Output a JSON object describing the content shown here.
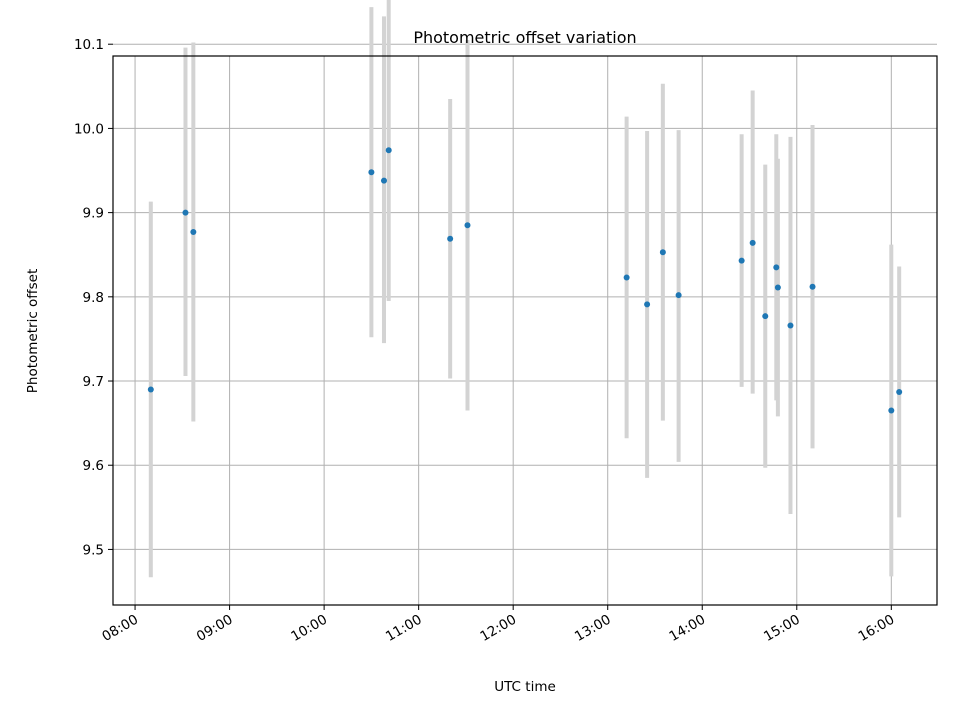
{
  "chart_data": {
    "type": "scatter",
    "title": "Photometric offset variation",
    "xlabel": "UTC time",
    "ylabel": "Photometric offset",
    "x_tick_labels": [
      "08:00",
      "09:00",
      "10:00",
      "11:00",
      "12:00",
      "13:00",
      "14:00",
      "15:00",
      "16:00"
    ],
    "x_ticks": [
      "08:00",
      "09:00",
      "10:00",
      "11:00",
      "12:00",
      "13:00",
      "14:00",
      "15:00",
      "16:00"
    ],
    "y_ticks": [
      9.5,
      9.6,
      9.7,
      9.8,
      9.9,
      10.0,
      10.1
    ],
    "y_tick_labels": [
      "9.5",
      "9.6",
      "9.7",
      "9.8",
      "9.9",
      "10.0",
      "10.1"
    ],
    "xlim": [
      "07:46",
      "16:29"
    ],
    "ylim": [
      9.434,
      10.086
    ],
    "grid": true,
    "marker_color": "#1f77b4",
    "errorbar_color": "#d3d3d3",
    "points": [
      {
        "time": "08:10",
        "y": 9.69,
        "ymin": 9.467,
        "ymax": 9.913
      },
      {
        "time": "08:32",
        "y": 9.9,
        "ymin": 9.706,
        "ymax": 10.096
      },
      {
        "time": "08:37",
        "y": 9.877,
        "ymin": 9.652,
        "ymax": 10.102
      },
      {
        "time": "10:30",
        "y": 9.948,
        "ymin": 9.752,
        "ymax": 10.144
      },
      {
        "time": "10:38",
        "y": 9.938,
        "ymin": 9.745,
        "ymax": 10.133
      },
      {
        "time": "10:41",
        "y": 9.974,
        "ymin": 9.795,
        "ymax": 10.153
      },
      {
        "time": "11:20",
        "y": 9.869,
        "ymin": 9.703,
        "ymax": 10.035
      },
      {
        "time": "11:31",
        "y": 9.885,
        "ymin": 9.665,
        "ymax": 10.105
      },
      {
        "time": "13:12",
        "y": 9.823,
        "ymin": 9.632,
        "ymax": 10.014
      },
      {
        "time": "13:25",
        "y": 9.791,
        "ymin": 9.585,
        "ymax": 9.997
      },
      {
        "time": "13:35",
        "y": 9.853,
        "ymin": 9.653,
        "ymax": 10.053
      },
      {
        "time": "13:45",
        "y": 9.802,
        "ymin": 9.604,
        "ymax": 9.998
      },
      {
        "time": "14:25",
        "y": 9.843,
        "ymin": 9.693,
        "ymax": 9.993
      },
      {
        "time": "14:32",
        "y": 9.864,
        "ymin": 9.685,
        "ymax": 10.045
      },
      {
        "time": "14:40",
        "y": 9.777,
        "ymin": 9.597,
        "ymax": 9.957
      },
      {
        "time": "14:47",
        "y": 9.835,
        "ymin": 9.677,
        "ymax": 9.993
      },
      {
        "time": "14:48",
        "y": 9.811,
        "ymin": 9.658,
        "ymax": 9.964
      },
      {
        "time": "14:56",
        "y": 9.766,
        "ymin": 9.542,
        "ymax": 9.99
      },
      {
        "time": "15:10",
        "y": 9.812,
        "ymin": 9.62,
        "ymax": 10.004
      },
      {
        "time": "16:00",
        "y": 9.665,
        "ymin": 9.468,
        "ymax": 9.862
      },
      {
        "time": "16:05",
        "y": 9.687,
        "ymin": 9.538,
        "ymax": 9.836
      }
    ]
  }
}
